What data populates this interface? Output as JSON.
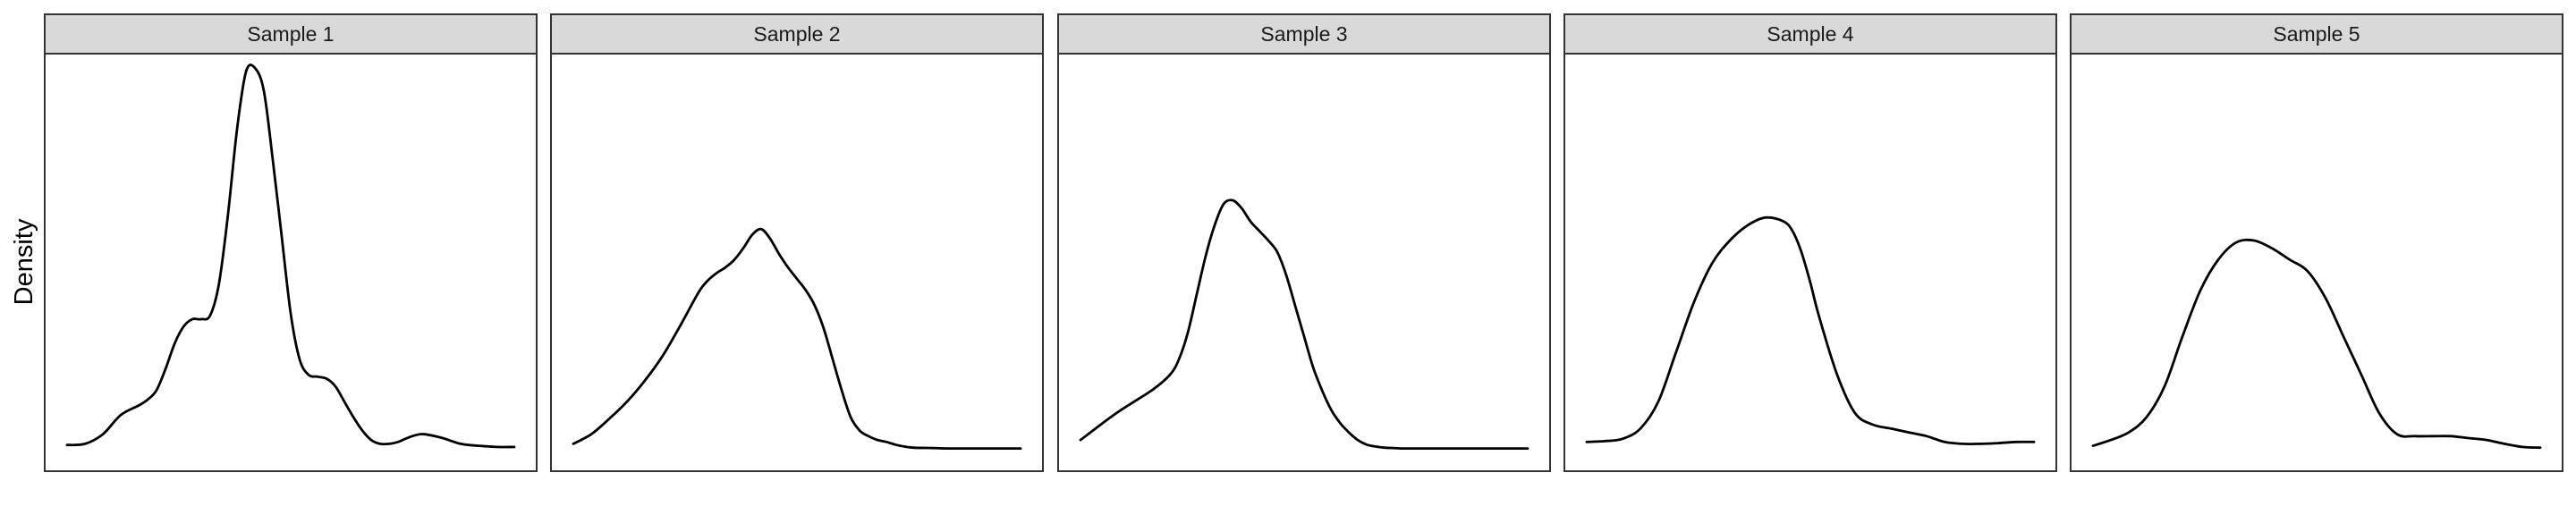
{
  "figure": {
    "ylabel": "Density"
  },
  "chart_data": [
    {
      "type": "line",
      "title": "Sample 1",
      "ylabel": "Density",
      "x": [
        0.0,
        0.04,
        0.08,
        0.12,
        0.16,
        0.18,
        0.2,
        0.22,
        0.24,
        0.26,
        0.28,
        0.3,
        0.32,
        0.34,
        0.36,
        0.38,
        0.4,
        0.42,
        0.44,
        0.46,
        0.48,
        0.5,
        0.52,
        0.54,
        0.56,
        0.58,
        0.6,
        0.62,
        0.64,
        0.66,
        0.68,
        0.7,
        0.72,
        0.74,
        0.76,
        0.78,
        0.8,
        0.84,
        0.88,
        0.92,
        0.96,
        1.0
      ],
      "values": [
        0.017,
        0.02,
        0.045,
        0.095,
        0.12,
        0.135,
        0.16,
        0.215,
        0.28,
        0.325,
        0.345,
        0.345,
        0.355,
        0.44,
        0.62,
        0.84,
        0.99,
        1.0,
        0.94,
        0.76,
        0.56,
        0.36,
        0.24,
        0.2,
        0.195,
        0.19,
        0.17,
        0.13,
        0.09,
        0.055,
        0.03,
        0.02,
        0.02,
        0.025,
        0.035,
        0.043,
        0.045,
        0.035,
        0.02,
        0.015,
        0.012,
        0.012
      ]
    },
    {
      "type": "line",
      "title": "Sample 2",
      "ylabel": "Density",
      "x": [
        0.0,
        0.04,
        0.08,
        0.12,
        0.16,
        0.2,
        0.24,
        0.28,
        0.3,
        0.32,
        0.34,
        0.36,
        0.38,
        0.4,
        0.42,
        0.44,
        0.46,
        0.48,
        0.5,
        0.52,
        0.54,
        0.56,
        0.58,
        0.6,
        0.62,
        0.64,
        0.66,
        0.68,
        0.7,
        0.72,
        0.74,
        0.76,
        0.8,
        0.84,
        0.88,
        0.92,
        1.0
      ],
      "values": [
        0.02,
        0.045,
        0.085,
        0.13,
        0.185,
        0.25,
        0.33,
        0.415,
        0.445,
        0.465,
        0.48,
        0.5,
        0.53,
        0.565,
        0.58,
        0.555,
        0.515,
        0.48,
        0.45,
        0.42,
        0.38,
        0.32,
        0.24,
        0.16,
        0.09,
        0.055,
        0.04,
        0.03,
        0.025,
        0.018,
        0.013,
        0.01,
        0.009,
        0.008,
        0.008,
        0.008,
        0.008
      ]
    },
    {
      "type": "line",
      "title": "Sample 3",
      "ylabel": "Density",
      "x": [
        0.0,
        0.08,
        0.16,
        0.2,
        0.22,
        0.24,
        0.26,
        0.28,
        0.3,
        0.32,
        0.34,
        0.36,
        0.38,
        0.4,
        0.42,
        0.44,
        0.46,
        0.48,
        0.5,
        0.52,
        0.54,
        0.56,
        0.58,
        0.6,
        0.62,
        0.64,
        0.66,
        0.68,
        0.7,
        0.72,
        0.76,
        0.8,
        0.84,
        0.88,
        0.92,
        0.96,
        1.0
      ],
      "values": [
        0.03,
        0.1,
        0.16,
        0.2,
        0.24,
        0.31,
        0.41,
        0.51,
        0.59,
        0.645,
        0.655,
        0.635,
        0.6,
        0.575,
        0.55,
        0.52,
        0.46,
        0.38,
        0.3,
        0.22,
        0.16,
        0.11,
        0.075,
        0.05,
        0.03,
        0.018,
        0.013,
        0.01,
        0.009,
        0.008,
        0.008,
        0.008,
        0.008,
        0.008,
        0.008,
        0.008,
        0.008
      ]
    },
    {
      "type": "line",
      "title": "Sample 4",
      "ylabel": "Density",
      "x": [
        0.0,
        0.04,
        0.08,
        0.12,
        0.16,
        0.2,
        0.24,
        0.28,
        0.32,
        0.36,
        0.4,
        0.44,
        0.46,
        0.48,
        0.5,
        0.52,
        0.56,
        0.6,
        0.64,
        0.68,
        0.72,
        0.76,
        0.8,
        0.84,
        0.88,
        0.92,
        0.96,
        1.0
      ],
      "values": [
        0.025,
        0.027,
        0.033,
        0.06,
        0.13,
        0.26,
        0.39,
        0.49,
        0.55,
        0.59,
        0.61,
        0.6,
        0.575,
        0.52,
        0.44,
        0.35,
        0.2,
        0.1,
        0.07,
        0.06,
        0.05,
        0.04,
        0.025,
        0.02,
        0.02,
        0.022,
        0.025,
        0.025
      ]
    },
    {
      "type": "line",
      "title": "Sample 5",
      "ylabel": "Density",
      "x": [
        0.0,
        0.04,
        0.08,
        0.12,
        0.16,
        0.2,
        0.24,
        0.28,
        0.32,
        0.36,
        0.4,
        0.44,
        0.48,
        0.52,
        0.56,
        0.6,
        0.64,
        0.68,
        0.72,
        0.76,
        0.8,
        0.84,
        0.88,
        0.92,
        0.96,
        1.0
      ],
      "values": [
        0.015,
        0.03,
        0.05,
        0.09,
        0.17,
        0.3,
        0.42,
        0.5,
        0.545,
        0.55,
        0.53,
        0.5,
        0.47,
        0.4,
        0.3,
        0.2,
        0.1,
        0.045,
        0.04,
        0.04,
        0.04,
        0.035,
        0.03,
        0.02,
        0.012,
        0.01
      ]
    }
  ]
}
